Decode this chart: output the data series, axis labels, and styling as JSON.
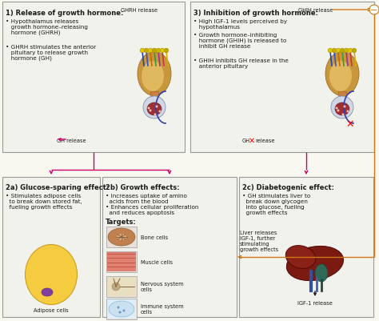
{
  "bg_color": "#f8f8f0",
  "border_color": "#aaaaaa",
  "pink": "#d4006a",
  "orange": "#d07818",
  "black": "#1a1a1a",
  "box1_title": "1) Release of growth hormone:",
  "box1_b1": "• Hypothalamus releases\n   growth hormone–releasing\n   hormone (GHRH)",
  "box1_b2": "• GHRH stimulates the anterior\n   pituitary to release growth\n   hormone (GH)",
  "box1_ghrh": "GHRH release",
  "box1_gh": "GH release",
  "box3_title": "3) Inhibition of growth hormone:",
  "box3_b1": "• High IGF-1 levels perceived by\n   hypothalamus",
  "box3_b2": "• Growth hormone–inhibiting\n   hormone (GHIH) is released to\n   inhibit GH release",
  "box3_b3": "• GHIH inhibits GH release in the\n   anterior pituitary",
  "box3_ghih": "GHIH release",
  "box3_gh": "GH",
  "box3_rel": "release",
  "box2a_title": "2a) Glucose-sparing effect:",
  "box2a_b1": "• Stimulates adipose cells\n  to break down stored fat,\n  fueling growth effects",
  "box2a_cell": "Adipose cells",
  "box2b_title": "2b) Growth effects:",
  "box2b_b1": "• Increases uptake of amino\n  acids from the blood",
  "box2b_b2": "• Enhances cellular proliferation\n  and reduces apoptosis",
  "box2b_targets": "Targets:",
  "box2b_cells": [
    "Bone cells",
    "Muscle cells",
    "Nervous system\ncells",
    "Immune system\ncells"
  ],
  "box2c_title": "2c) Diabetogenic effect:",
  "box2c_b1": "• GH stimulates liver to\n  break down glycogen\n  into glucose, fueling\n  growth effects",
  "box2c_igf_text": "Liver releases\nIGF-1, further\nstimulating\ngrowth effects",
  "box2c_igf_label": "IGF-1 release",
  "tf": 6.0,
  "bf": 5.2,
  "sf": 4.8
}
